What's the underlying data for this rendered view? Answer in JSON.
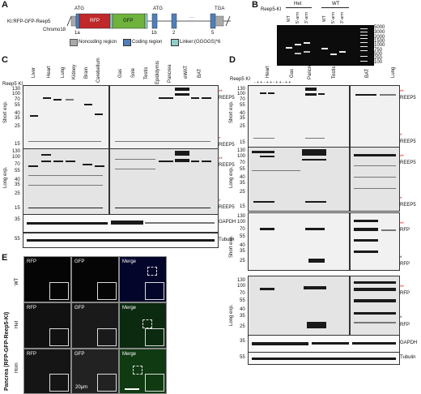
{
  "panel_letters": {
    "a": "A",
    "b": "B",
    "c": "C",
    "d": "D",
    "e": "E"
  },
  "panel_a": {
    "construct": "KI:RFP-GFP-Reep5",
    "chromosome": "Chromo18",
    "atg1": "ATG",
    "atg2": "ATG",
    "tga": "TGA",
    "exons": {
      "e1a": "1a",
      "e1b": "1b",
      "e2": "2",
      "e5": "5",
      "dots": "···"
    },
    "rfp": "RFP",
    "gfp": "GFP",
    "legend": {
      "noncoding": "Noncoding region",
      "coding": "Coding region",
      "linker": "Linker:(GGGGS)*6"
    },
    "colors": {
      "rfp": "#c0282a",
      "gfp": "#6fb23c",
      "coding": "#4f7fba",
      "noncoding": "#a9a9a9",
      "linker": "#8fcfc9"
    }
  },
  "panel_b": {
    "title": "Reep5-KI",
    "groups": [
      "Het",
      "WT"
    ],
    "lanes": [
      "WT",
      "5'-arm",
      "3'-arm",
      "WT",
      "5'-arm",
      "3'-arm"
    ],
    "ladder": [
      "5000",
      "3000",
      "2000",
      "1500",
      "1000",
      "750",
      "500",
      "250",
      "100"
    ]
  },
  "panel_c": {
    "header": "Reep5 KI",
    "tissues_left": [
      "Liver",
      "Heart",
      "Lung",
      "Kidney",
      "Brain",
      "Cerebellum"
    ],
    "tissues_right": [
      "Gas",
      "Sole",
      "Testis",
      "Epididymis",
      "Pancrea",
      "eWAT",
      "BAT"
    ],
    "row_labels": [
      "Short exp.",
      "Long exp."
    ],
    "protein_labels": [
      "REEP5",
      "REEP5",
      "REEP5",
      "REEP5",
      "GAPDH",
      "Tubulin"
    ],
    "mw_short": [
      "130",
      "100",
      "70",
      "55",
      "40",
      "35",
      "25",
      "15"
    ],
    "mw_long": [
      "130",
      "100",
      "70",
      "55",
      "40",
      "35",
      "25",
      "15"
    ],
    "mw_gapdh": "35",
    "mw_tub": "55",
    "marks": {
      "double": "**",
      "single": "*"
    }
  },
  "panel_d": {
    "header": "Reep5 KI",
    "signs": "- + + - + + - + + - + +",
    "tissues_left": [
      "Heart",
      "Gas",
      "Pancrea",
      "Testis"
    ],
    "tissues_right": [
      "BAT",
      "Lung"
    ],
    "row_labels": [
      "Short exp.",
      "Long exp.",
      "Short exp.",
      "Long exp."
    ],
    "protein_labels": [
      "REEP5",
      "REEP5",
      "REEP5",
      "REEP5",
      "RFP",
      "RFP",
      "RFP",
      "RFP",
      "GAPDH",
      "Tubulin"
    ],
    "mw_1": [
      "130",
      "100",
      "70",
      "55",
      "40",
      "35",
      "25",
      "15"
    ],
    "mw_2": [
      "130",
      "100",
      "70",
      "55",
      "40",
      "35",
      "25",
      "15"
    ],
    "mw_3": [
      "130",
      "100",
      "70",
      "55",
      "40",
      "35",
      "25"
    ],
    "mw_4": [
      "130",
      "100",
      "70",
      "55",
      "40",
      "35",
      "25"
    ],
    "mw_gapdh": "35",
    "mw_tub": "55",
    "marks": {
      "double": "**",
      "single": "*"
    }
  },
  "panel_e": {
    "side_label": "Pancrea (RFP-GFP-Reep5-KI)",
    "rows": [
      "WT",
      "Het",
      "Hom"
    ],
    "columns": [
      "RFP",
      "GFP",
      "Merge"
    ],
    "scale_bar": "20μm"
  }
}
